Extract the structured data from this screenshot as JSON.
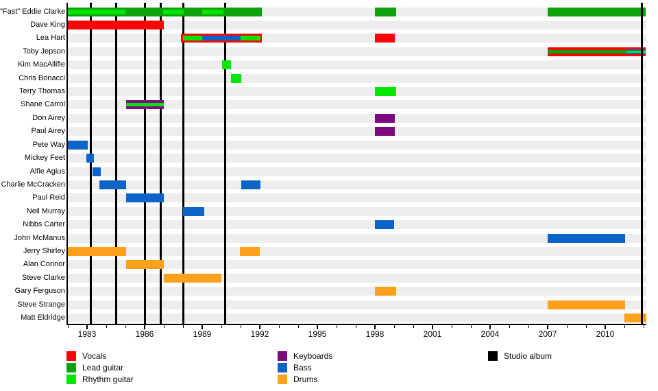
{
  "chart_data": {
    "type": "timeline",
    "x_axis": {
      "start": 1982.0,
      "end": 2012.15,
      "major_ticks": [
        1983,
        1986,
        1989,
        1992,
        1995,
        1998,
        2001,
        2004,
        2007,
        2010
      ],
      "minor_tick_step": 1,
      "grid": "off"
    },
    "roles": {
      "vocals": {
        "label": "Vocals",
        "color": "#fa0505"
      },
      "lead": {
        "label": "Lead guitar",
        "color": "#0da20d"
      },
      "rhythm": {
        "label": "Rhythm guitar",
        "color": "#03e603"
      },
      "keyboards": {
        "label": "Keyboards",
        "color": "#7c0c7c"
      },
      "bass": {
        "label": "Bass",
        "color": "#0c64c8"
      },
      "drums": {
        "label": "Drums",
        "color": "#fba11d"
      },
      "album": {
        "label": "Studio album",
        "color": "#000000"
      }
    },
    "legend_columns": [
      [
        {
          "role": "vocals"
        },
        {
          "role": "lead"
        },
        {
          "role": "rhythm"
        }
      ],
      [
        {
          "role": "keyboards"
        },
        {
          "role": "bass"
        },
        {
          "role": "drums"
        }
      ],
      [
        {
          "role": "album"
        }
      ]
    ],
    "studio_albums": [
      1983.2,
      1984.5,
      1986.0,
      1986.85,
      1988.0,
      1990.2,
      2011.9
    ],
    "members": [
      {
        "name": "\"Fast\" Eddie Clarke",
        "segments": [
          {
            "from": 1982.0,
            "to": 1992.1,
            "role": "lead",
            "layer": "main"
          },
          {
            "from": 1982.0,
            "to": 1985.0,
            "role": "rhythm",
            "layer": "mid"
          },
          {
            "from": 1986.95,
            "to": 1988.05,
            "role": "rhythm",
            "layer": "mid"
          },
          {
            "from": 1989.0,
            "to": 1990.1,
            "role": "rhythm",
            "layer": "mid"
          },
          {
            "from": 1998.0,
            "to": 1999.1,
            "role": "lead",
            "layer": "main"
          },
          {
            "from": 2007.0,
            "to": 2012.1,
            "role": "lead",
            "layer": "main"
          }
        ]
      },
      {
        "name": "Dave King",
        "segments": [
          {
            "from": 1982.0,
            "to": 1987.0,
            "role": "vocals",
            "layer": "main"
          }
        ]
      },
      {
        "name": "Lea Hart",
        "segments": [
          {
            "from": 1987.9,
            "to": 1992.1,
            "role": "vocals",
            "layer": "main"
          },
          {
            "from": 1988.0,
            "to": 1989.0,
            "role": "rhythm",
            "layer": "mid"
          },
          {
            "from": 1989.0,
            "to": 1991.0,
            "role": "bass",
            "layer": "mid"
          },
          {
            "from": 1991.0,
            "to": 1992.05,
            "role": "rhythm",
            "layer": "mid"
          },
          {
            "from": 1998.0,
            "to": 1999.05,
            "role": "vocals",
            "layer": "main"
          }
        ]
      },
      {
        "name": "Toby Jepson",
        "segments": [
          {
            "from": 2007.0,
            "to": 2012.1,
            "role": "vocals",
            "layer": "main"
          },
          {
            "from": 2007.0,
            "to": 2011.1,
            "role": "lead",
            "layer": "thin"
          },
          {
            "from": 2011.1,
            "to": 2012.1,
            "role": "bass",
            "layer": "mid"
          },
          {
            "from": 2011.1,
            "to": 2012.1,
            "role": "rhythm",
            "layer": "inner"
          }
        ]
      },
      {
        "name": "Kim MacAllifie",
        "segments": [
          {
            "from": 1990.05,
            "to": 1990.5,
            "role": "rhythm",
            "layer": "main"
          }
        ]
      },
      {
        "name": "Chris Bonacci",
        "segments": [
          {
            "from": 1990.5,
            "to": 1991.05,
            "role": "rhythm",
            "layer": "main"
          }
        ]
      },
      {
        "name": "Terry Thomas",
        "segments": [
          {
            "from": 1998.0,
            "to": 1999.1,
            "role": "rhythm",
            "layer": "main"
          }
        ]
      },
      {
        "name": "Shane Carrol",
        "segments": [
          {
            "from": 1985.05,
            "to": 1987.0,
            "role": "keyboards",
            "layer": "main"
          },
          {
            "from": 1985.05,
            "to": 1987.0,
            "role": "rhythm",
            "layer": "thin"
          }
        ]
      },
      {
        "name": "Don Airey",
        "segments": [
          {
            "from": 1998.0,
            "to": 1999.05,
            "role": "keyboards",
            "layer": "main"
          }
        ]
      },
      {
        "name": "Paul Airey",
        "segments": [
          {
            "from": 1998.0,
            "to": 1999.05,
            "role": "keyboards",
            "layer": "main"
          }
        ]
      },
      {
        "name": "Pete Way",
        "segments": [
          {
            "from": 1982.0,
            "to": 1983.05,
            "role": "bass",
            "layer": "main"
          }
        ]
      },
      {
        "name": "Mickey Feet",
        "segments": [
          {
            "from": 1982.95,
            "to": 1983.35,
            "role": "bass",
            "layer": "main"
          }
        ]
      },
      {
        "name": "Alfie Agius",
        "segments": [
          {
            "from": 1983.3,
            "to": 1983.7,
            "role": "bass",
            "layer": "main"
          }
        ]
      },
      {
        "name": "Charlie McCracken",
        "segments": [
          {
            "from": 1983.65,
            "to": 1985.05,
            "role": "bass",
            "layer": "main"
          },
          {
            "from": 1991.05,
            "to": 1992.05,
            "role": "bass",
            "layer": "main"
          }
        ]
      },
      {
        "name": "Paul Reid",
        "segments": [
          {
            "from": 1985.05,
            "to": 1987.0,
            "role": "bass",
            "layer": "main"
          }
        ]
      },
      {
        "name": "Neil Murray",
        "segments": [
          {
            "from": 1988.0,
            "to": 1989.1,
            "role": "bass",
            "layer": "main"
          }
        ]
      },
      {
        "name": "Nibbs Carter",
        "segments": [
          {
            "from": 1998.0,
            "to": 1999.0,
            "role": "bass",
            "layer": "main"
          }
        ]
      },
      {
        "name": "John McManus",
        "segments": [
          {
            "from": 2007.0,
            "to": 2011.05,
            "role": "bass",
            "layer": "main"
          }
        ]
      },
      {
        "name": "Jerry Shirley",
        "segments": [
          {
            "from": 1982.0,
            "to": 1985.05,
            "role": "drums",
            "layer": "main"
          },
          {
            "from": 1990.95,
            "to": 1992.0,
            "role": "drums",
            "layer": "main"
          }
        ]
      },
      {
        "name": "Alan Connor",
        "segments": [
          {
            "from": 1985.05,
            "to": 1987.0,
            "role": "drums",
            "layer": "main"
          }
        ]
      },
      {
        "name": "Steve Clarke",
        "segments": [
          {
            "from": 1987.0,
            "to": 1990.0,
            "role": "drums",
            "layer": "main"
          }
        ]
      },
      {
        "name": "Gary Ferguson",
        "segments": [
          {
            "from": 1998.0,
            "to": 1999.1,
            "role": "drums",
            "layer": "main"
          }
        ]
      },
      {
        "name": "Steve Strange",
        "segments": [
          {
            "from": 2007.0,
            "to": 2011.05,
            "role": "drums",
            "layer": "main"
          }
        ]
      },
      {
        "name": "Matt Eldridge",
        "segments": [
          {
            "from": 2011.0,
            "to": 2012.15,
            "role": "drums",
            "layer": "main"
          }
        ]
      }
    ]
  }
}
